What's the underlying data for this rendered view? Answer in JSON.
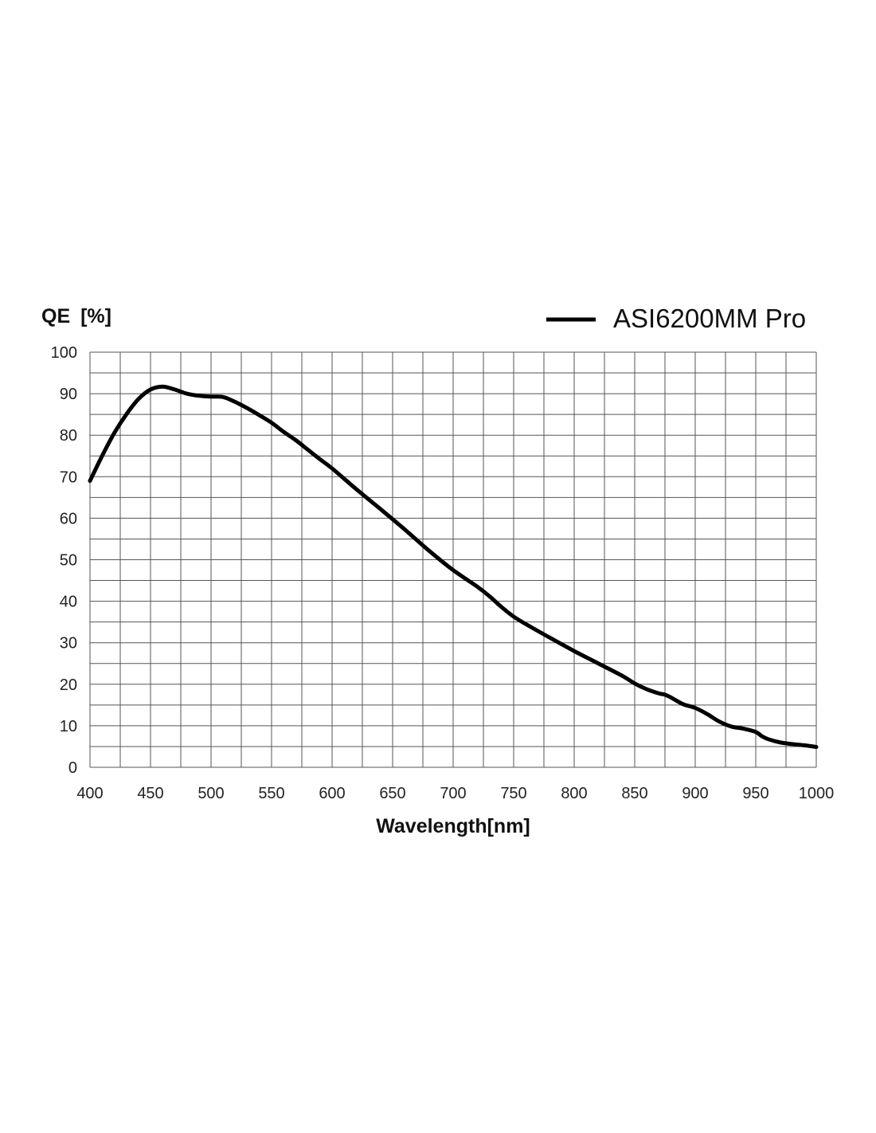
{
  "chart_data": {
    "type": "line",
    "ylabel_main": "QE",
    "ylabel_unit": "[%]",
    "xlabel": "Wavelength[nm]",
    "xlim": [
      400,
      1000
    ],
    "ylim": [
      0,
      100
    ],
    "grid": true,
    "legend_position": "top-right",
    "x_ticks": [
      400,
      450,
      500,
      550,
      600,
      650,
      700,
      750,
      800,
      850,
      900,
      950,
      1000
    ],
    "y_ticks": [
      0,
      10,
      20,
      30,
      40,
      50,
      60,
      70,
      80,
      90,
      100
    ],
    "x_tick_labels": [
      "400",
      "450",
      "500",
      "550",
      "600",
      "650",
      "700",
      "750",
      "800",
      "850",
      "900",
      "950",
      "1000"
    ],
    "y_tick_labels": [
      "0",
      "10",
      "20",
      "30",
      "40",
      "50",
      "60",
      "70",
      "80",
      "90",
      "100"
    ],
    "series": [
      {
        "name": "ASI6200MM Pro",
        "color": "#000000",
        "x": [
          400,
          410,
          420,
          430,
          440,
          450,
          460,
          470,
          480,
          490,
          500,
          510,
          520,
          530,
          540,
          550,
          560,
          570,
          580,
          590,
          600,
          620,
          640,
          660,
          680,
          700,
          720,
          730,
          740,
          750,
          760,
          780,
          800,
          820,
          840,
          850,
          860,
          870,
          875,
          880,
          890,
          900,
          910,
          920,
          930,
          940,
          950,
          955,
          960,
          970,
          980,
          990,
          1000
        ],
        "y": [
          69,
          75,
          80.5,
          85,
          88.7,
          91,
          91.7,
          91,
          90,
          89.5,
          89.3,
          89.2,
          88,
          86.5,
          84.8,
          83,
          80.8,
          78.8,
          76.5,
          74.2,
          72,
          67,
          62.2,
          57.3,
          52.2,
          47.5,
          43.5,
          41.2,
          38.6,
          36.3,
          34.5,
          31.2,
          28,
          25,
          22,
          20.2,
          18.8,
          17.8,
          17.5,
          16.8,
          15.2,
          14.3,
          12.8,
          11,
          9.8,
          9.3,
          8.5,
          7.5,
          6.8,
          6,
          5.6,
          5.3,
          4.9
        ]
      }
    ]
  }
}
